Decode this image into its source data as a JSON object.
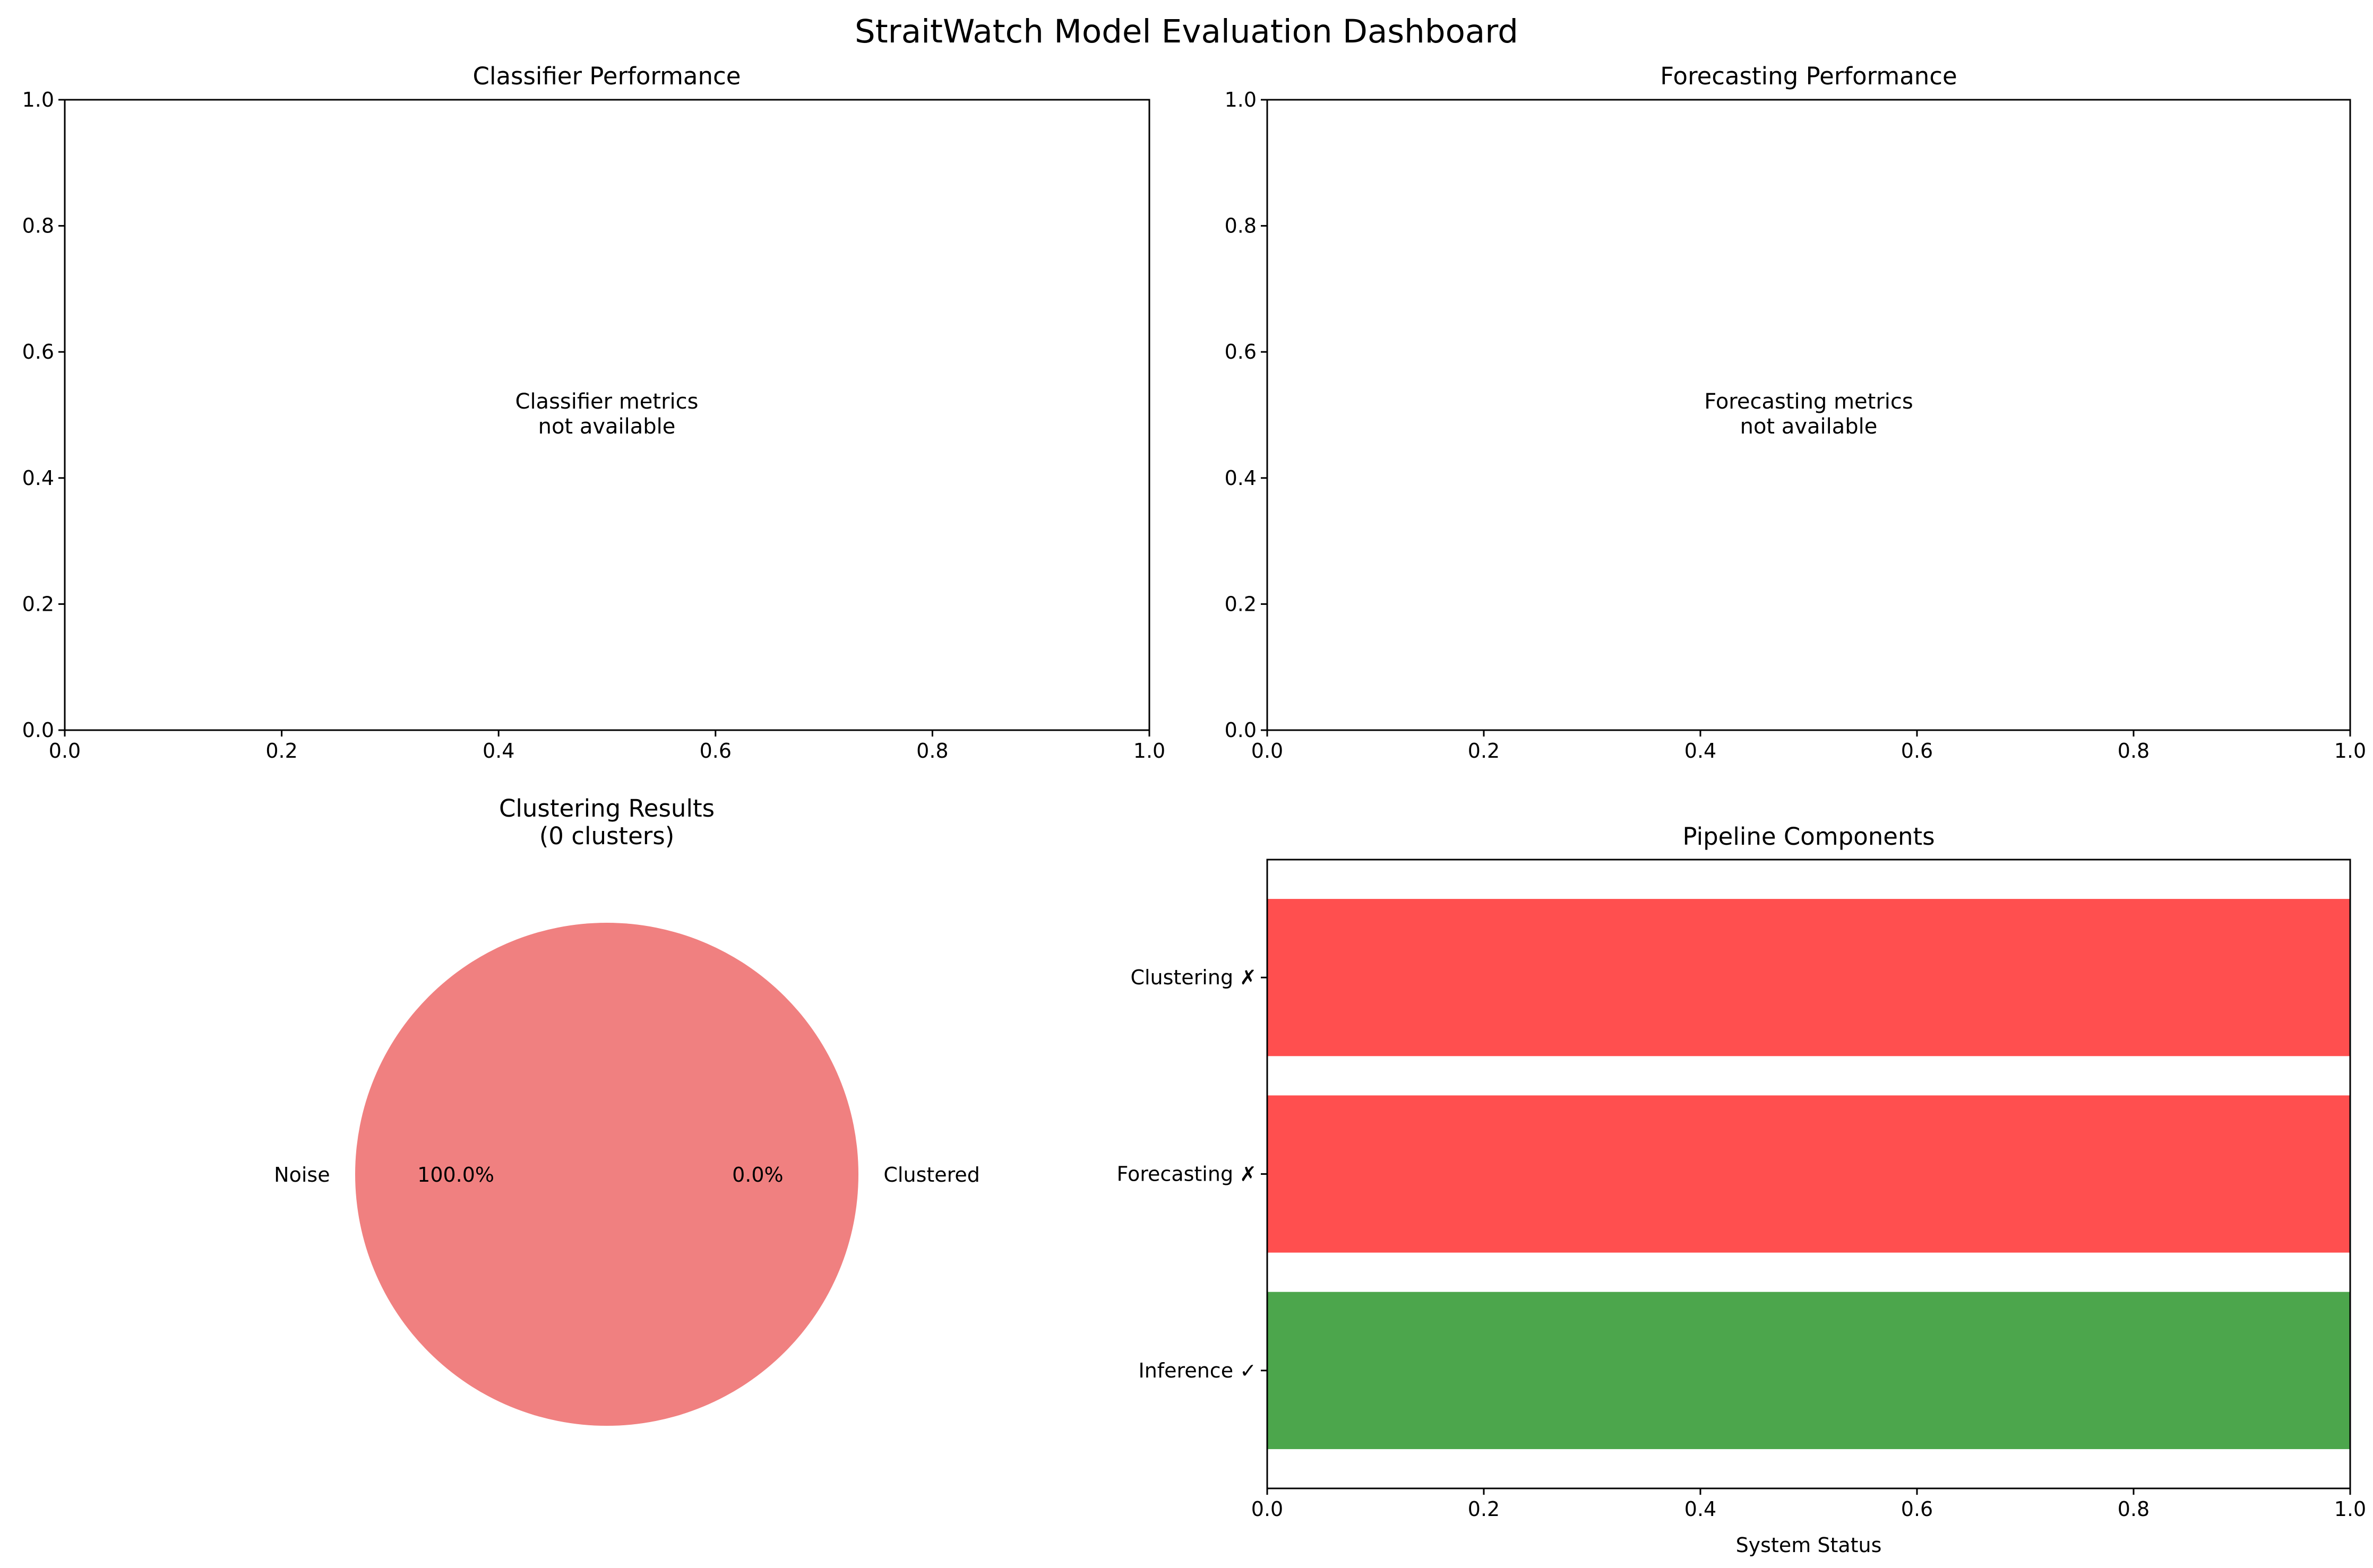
{
  "figure": {
    "title": "StraitWatch Model Evaluation Dashboard"
  },
  "chart_data": [
    {
      "id": "classifier",
      "type": "scatter",
      "title": "Classifier Performance",
      "note_lines": [
        "Classifier metrics",
        "not available"
      ],
      "xlim": [
        0,
        1
      ],
      "ylim": [
        0,
        1
      ],
      "xticks": [
        "0.0",
        "0.2",
        "0.4",
        "0.6",
        "0.8",
        "1.0"
      ],
      "yticks": [
        "0.0",
        "0.2",
        "0.4",
        "0.6",
        "0.8",
        "1.0"
      ],
      "series": []
    },
    {
      "id": "forecasting",
      "type": "scatter",
      "title": "Forecasting Performance",
      "note_lines": [
        "Forecasting metrics",
        "not available"
      ],
      "xlim": [
        0,
        1
      ],
      "ylim": [
        0,
        1
      ],
      "xticks": [
        "0.0",
        "0.2",
        "0.4",
        "0.6",
        "0.8",
        "1.0"
      ],
      "yticks": [
        "0.0",
        "0.2",
        "0.4",
        "0.6",
        "0.8",
        "1.0"
      ],
      "series": []
    },
    {
      "id": "clustering",
      "type": "pie",
      "title_lines": [
        "Clustering Results",
        "(0 clusters)"
      ],
      "slices": [
        {
          "label": "Noise",
          "value": 100.0,
          "pct_label": "100.0%",
          "color": "#f08080"
        },
        {
          "label": "Clustered",
          "value": 0.0,
          "pct_label": "0.0%",
          "color": "#87ceeb"
        }
      ]
    },
    {
      "id": "pipeline",
      "type": "bar",
      "orientation": "horizontal",
      "title": "Pipeline Components",
      "xlabel": "System Status",
      "xlim": [
        0,
        1
      ],
      "xticks": [
        "0.0",
        "0.2",
        "0.4",
        "0.6",
        "0.8",
        "1.0"
      ],
      "categories": [
        "Inference ✓",
        "Forecasting ✗",
        "Clustering ✗"
      ],
      "values": [
        1,
        1,
        1
      ],
      "colors": [
        "#4ca64c",
        "#ff4f4f",
        "#ff4f4f"
      ]
    }
  ]
}
